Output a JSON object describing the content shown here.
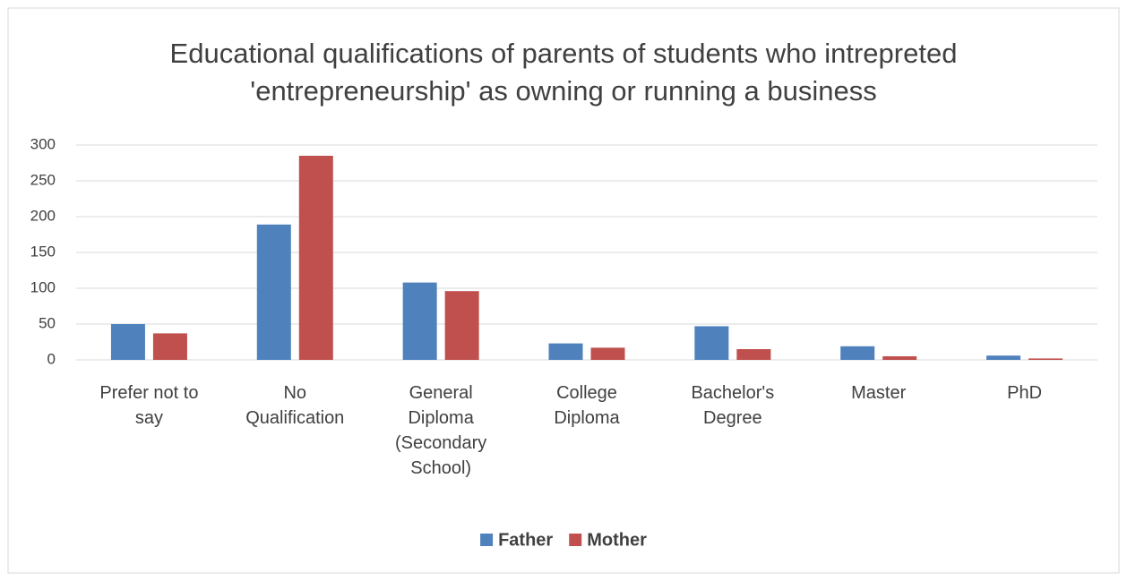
{
  "chart_data": {
    "type": "bar",
    "title": "Educational qualifications of parents of students who intrepreted 'entrepreneurship' as owning or running a business",
    "categories": [
      "Prefer not to say",
      "No Qualification",
      "General Diploma (Secondary School)",
      "College Diploma",
      "Bachelor's Degree",
      "Master",
      "PhD"
    ],
    "series": [
      {
        "name": "Father",
        "color": "#4f81bd",
        "values": [
          50,
          189,
          108,
          23,
          47,
          19,
          6
        ]
      },
      {
        "name": "Mother",
        "color": "#c0504d",
        "values": [
          37,
          285,
          96,
          17,
          15,
          5,
          2
        ]
      }
    ],
    "ylim": [
      0,
      300
    ],
    "yticks": [
      0,
      50,
      100,
      150,
      200,
      250,
      300
    ],
    "grid": true,
    "legend": "bottom"
  }
}
